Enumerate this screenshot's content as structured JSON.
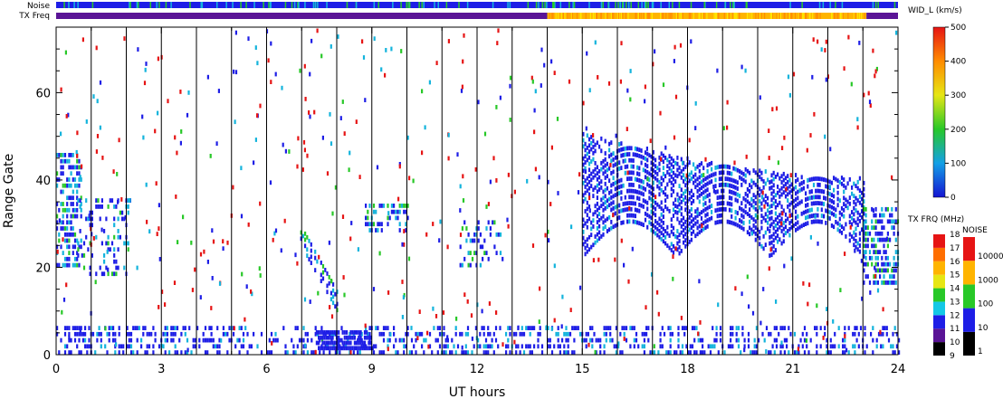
{
  "chart_data": {
    "type": "heatmap",
    "title": "",
    "xlabel": "UT hours",
    "ylabel": "Range Gate",
    "xlim": [
      0,
      24
    ],
    "ylim": [
      0,
      75
    ],
    "x_ticks": [
      "0",
      "3",
      "6",
      "9",
      "12",
      "15",
      "18",
      "21",
      "24"
    ],
    "y_ticks": [
      "0",
      "20",
      "40",
      "60"
    ],
    "hour_gridlines": [
      1,
      2,
      3,
      4,
      5,
      6,
      7,
      8,
      9,
      10,
      11,
      12,
      13,
      14,
      15,
      16,
      17,
      18,
      19,
      20,
      21,
      22,
      23
    ],
    "top_bars": {
      "noise_label": "Noise",
      "txfreq_label": "TX Freq",
      "txfreq_segments": [
        {
          "start": 0,
          "end": 14,
          "color": "#5a1496"
        },
        {
          "start": 14,
          "end": 23.1,
          "color": "#ffb400"
        },
        {
          "start": 23.1,
          "end": 24,
          "color": "#5a1496"
        }
      ]
    },
    "scatter_regions": [
      {
        "name": "early",
        "t": [
          0,
          0.7
        ],
        "g": [
          20,
          46
        ],
        "density": 0.55
      },
      {
        "name": "morning-patch",
        "t": [
          0.6,
          2.1
        ],
        "g": [
          18,
          36
        ],
        "density": 0.25
      },
      {
        "name": "descending-streak",
        "t": [
          6.9,
          8.0
        ],
        "g_start": 28,
        "g_end": 12,
        "width": 5,
        "density": 0.6
      },
      {
        "name": "mid-patch",
        "t": [
          8.8,
          10.0
        ],
        "g": [
          28,
          34
        ],
        "density": 0.35
      },
      {
        "name": "noon-patch",
        "t": [
          11.5,
          12.7
        ],
        "g": [
          20,
          30
        ],
        "density": 0.3
      },
      {
        "name": "afternoon-band",
        "t": [
          15.0,
          23.0
        ],
        "g_top": 50,
        "density": 0.7
      },
      {
        "name": "evening",
        "t": [
          23.0,
          24.0
        ],
        "g": [
          16,
          34
        ],
        "density": 0.6
      },
      {
        "name": "ground-scatter",
        "t": [
          0,
          24
        ],
        "g": [
          0,
          7
        ],
        "density": 0.35
      }
    ],
    "colorbars": [
      {
        "title": "WID_L (km/s)",
        "min": 0,
        "max": 500,
        "ticks": [
          "0",
          "100",
          "200",
          "300",
          "400",
          "500"
        ]
      },
      {
        "title": "TX FRQ (MHz)",
        "ticks": [
          "9",
          "10",
          "11",
          "12",
          "13",
          "14",
          "15",
          "16",
          "17",
          "18"
        ]
      },
      {
        "title": "NOISE",
        "ticks": [
          "1",
          "10",
          "100",
          "1000",
          "10000"
        ]
      }
    ]
  }
}
